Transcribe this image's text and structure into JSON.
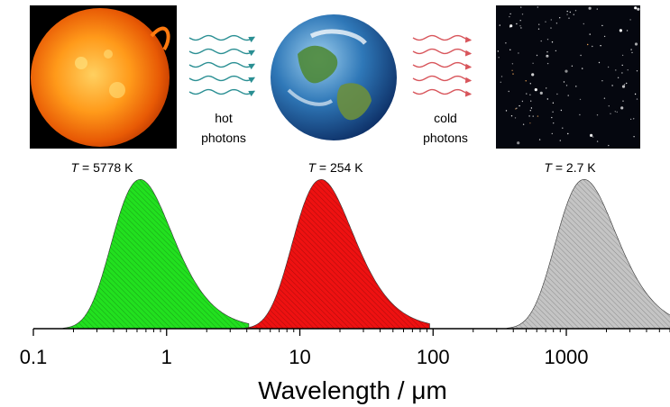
{
  "figure": {
    "arrow_label_1": [
      "hot",
      "photons"
    ],
    "arrow_label_2": [
      "cold",
      "photons"
    ],
    "sun_temp": {
      "sym": "T",
      "rest": " = 5778 K"
    },
    "earth_temp": {
      "sym": "T",
      "rest": " = 254 K"
    },
    "space_temp": {
      "sym": "T",
      "rest": " = 2.7 K"
    },
    "hot_photon_color": "#2a8f93",
    "cold_photon_color": "#d8555b"
  },
  "chart_data": {
    "type": "area",
    "xlabel": "Wavelength / μm",
    "ylabel": "",
    "xscale": "log",
    "xlim": [
      0.1,
      6000
    ],
    "x_ticks": [
      0.1,
      1,
      10,
      100,
      1000
    ],
    "x_tick_labels": [
      "0.1",
      "1",
      "10",
      "100",
      "1000"
    ],
    "y_axis_shown": false,
    "grid": false,
    "series": [
      {
        "temperature_K": 5778,
        "peak_x": 0.5,
        "color": "#22e01f",
        "hatched": true
      },
      {
        "temperature_K": 254,
        "peak_x": 11.4,
        "color": "#ee1111",
        "hatched": true
      },
      {
        "temperature_K": 2.7,
        "peak_x": 1073,
        "color": "#c4c4c4",
        "hatched": true
      }
    ]
  }
}
